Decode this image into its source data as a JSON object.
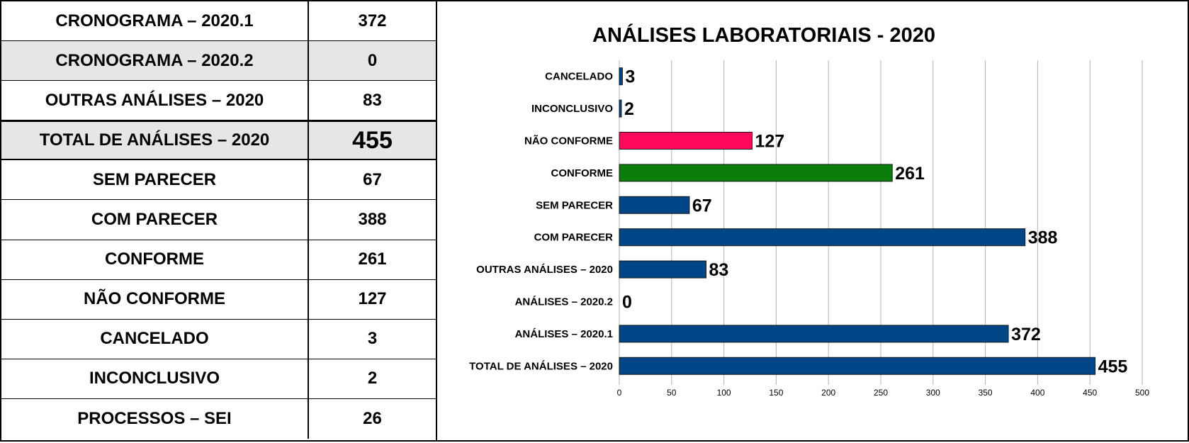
{
  "table": {
    "rows": [
      {
        "label": "CRONOGRAMA – 2020.1",
        "value": "372"
      },
      {
        "label": "CRONOGRAMA – 2020.2",
        "value": "0"
      },
      {
        "label": "OUTRAS ANÁLISES – 2020",
        "value": "83"
      },
      {
        "label": "TOTAL DE ANÁLISES – 2020",
        "value": "455"
      },
      {
        "label": "SEM PARECER",
        "value": "67"
      },
      {
        "label": "COM PARECER",
        "value": "388"
      },
      {
        "label": "CONFORME",
        "value": "261"
      },
      {
        "label": "NÃO CONFORME",
        "value": "127"
      },
      {
        "label": "CANCELADO",
        "value": "3"
      },
      {
        "label": "INCONCLUSIVO",
        "value": "2"
      },
      {
        "label": "PROCESSOS – SEI",
        "value": "26"
      }
    ]
  },
  "colors": {
    "blue": "#004586",
    "red": "#ff0a5a",
    "green": "#0a7d0a",
    "grid": "#b3b3b3",
    "table_shade": "#e6e6e6"
  },
  "chart_data": {
    "type": "bar",
    "orientation": "horizontal",
    "title": "ANÁLISES LABORATORIAIS - 2020",
    "categories": [
      "CANCELADO",
      "INCONCLUSIVO",
      "NÃO CONFORME",
      "CONFORME",
      "SEM PARECER",
      "COM PARECER",
      "OUTRAS ANÁLISES – 2020",
      "ANÁLISES – 2020.2",
      "ANÁLISES – 2020.1",
      "TOTAL DE ANÁLISES – 2020"
    ],
    "values": [
      3,
      2,
      127,
      261,
      67,
      388,
      83,
      0,
      372,
      455
    ],
    "bar_colors": [
      "blue",
      "blue",
      "red",
      "green",
      "blue",
      "blue",
      "blue",
      "blue",
      "blue",
      "blue"
    ],
    "xlim": [
      0,
      500
    ],
    "xticks": [
      0,
      50,
      100,
      150,
      200,
      250,
      300,
      350,
      400,
      450,
      500
    ],
    "grid": true,
    "legend": "none"
  }
}
